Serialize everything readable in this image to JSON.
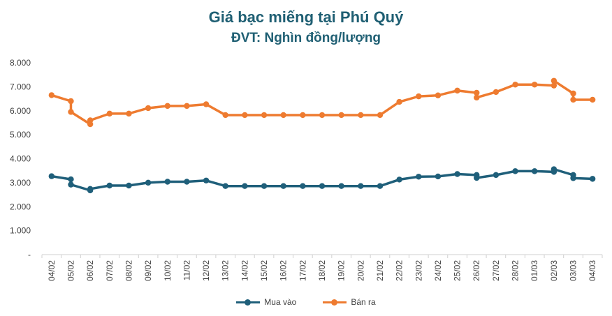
{
  "chart_data": {
    "type": "line",
    "title": "Giá bạc miếng tại Phú Quý",
    "subtitle": "ĐVT: Nghìn đồng/lượng",
    "xlabel": "",
    "ylabel": "",
    "ylim": [
      0,
      8000
    ],
    "y_ticks": [
      "-",
      "1.000",
      "2.000",
      "3.000",
      "4.000",
      "5.000",
      "6.000",
      "7.000",
      "8.000"
    ],
    "grid": false,
    "legend_position": "bottom",
    "categories": [
      "04/02",
      "05/02",
      "06/02",
      "07/02",
      "08/02",
      "09/02",
      "10/02",
      "11/02",
      "12/02",
      "13/02",
      "14/02",
      "15/02",
      "16/02",
      "17/02",
      "18/02",
      "19/02",
      "20/02",
      "21/02",
      "22/02",
      "23/02",
      "24/02",
      "25/02",
      "26/02",
      "27/02",
      "28/02",
      "01/03",
      "02/03",
      "03/03",
      "04/03"
    ],
    "series": [
      {
        "name": "Mua vào",
        "color": "#1f5f7a",
        "points": [
          {
            "x": "04/02",
            "y": 3270
          },
          {
            "x": "05/02",
            "y": 3140
          },
          {
            "x": "05/02",
            "y": 2920
          },
          {
            "x": "06/02",
            "y": 2680
          },
          {
            "x": "06/02",
            "y": 2740
          },
          {
            "x": "07/02",
            "y": 2880
          },
          {
            "x": "08/02",
            "y": 2880
          },
          {
            "x": "09/02",
            "y": 3000
          },
          {
            "x": "10/02",
            "y": 3040
          },
          {
            "x": "11/02",
            "y": 3040
          },
          {
            "x": "12/02",
            "y": 3090
          },
          {
            "x": "13/02",
            "y": 2860
          },
          {
            "x": "14/02",
            "y": 2860
          },
          {
            "x": "15/02",
            "y": 2860
          },
          {
            "x": "16/02",
            "y": 2860
          },
          {
            "x": "17/02",
            "y": 2860
          },
          {
            "x": "18/02",
            "y": 2860
          },
          {
            "x": "19/02",
            "y": 2860
          },
          {
            "x": "20/02",
            "y": 2860
          },
          {
            "x": "21/02",
            "y": 2860
          },
          {
            "x": "22/02",
            "y": 3130
          },
          {
            "x": "23/02",
            "y": 3250
          },
          {
            "x": "24/02",
            "y": 3260
          },
          {
            "x": "25/02",
            "y": 3360
          },
          {
            "x": "26/02",
            "y": 3320
          },
          {
            "x": "26/02",
            "y": 3200
          },
          {
            "x": "27/02",
            "y": 3320
          },
          {
            "x": "28/02",
            "y": 3480
          },
          {
            "x": "01/03",
            "y": 3480
          },
          {
            "x": "02/03",
            "y": 3450
          },
          {
            "x": "02/03",
            "y": 3560
          },
          {
            "x": "03/03",
            "y": 3320
          },
          {
            "x": "03/03",
            "y": 3190
          },
          {
            "x": "04/03",
            "y": 3160
          }
        ]
      },
      {
        "name": "Bán ra",
        "color": "#ee7b30",
        "points": [
          {
            "x": "04/02",
            "y": 6650
          },
          {
            "x": "05/02",
            "y": 6400
          },
          {
            "x": "05/02",
            "y": 5950
          },
          {
            "x": "06/02",
            "y": 5440
          },
          {
            "x": "06/02",
            "y": 5600
          },
          {
            "x": "07/02",
            "y": 5880
          },
          {
            "x": "08/02",
            "y": 5880
          },
          {
            "x": "09/02",
            "y": 6110
          },
          {
            "x": "10/02",
            "y": 6200
          },
          {
            "x": "11/02",
            "y": 6200
          },
          {
            "x": "12/02",
            "y": 6270
          },
          {
            "x": "13/02",
            "y": 5820
          },
          {
            "x": "14/02",
            "y": 5820
          },
          {
            "x": "15/02",
            "y": 5820
          },
          {
            "x": "16/02",
            "y": 5820
          },
          {
            "x": "17/02",
            "y": 5820
          },
          {
            "x": "18/02",
            "y": 5820
          },
          {
            "x": "19/02",
            "y": 5820
          },
          {
            "x": "20/02",
            "y": 5820
          },
          {
            "x": "21/02",
            "y": 5820
          },
          {
            "x": "22/02",
            "y": 6370
          },
          {
            "x": "23/02",
            "y": 6600
          },
          {
            "x": "24/02",
            "y": 6640
          },
          {
            "x": "25/02",
            "y": 6840
          },
          {
            "x": "26/02",
            "y": 6750
          },
          {
            "x": "26/02",
            "y": 6550
          },
          {
            "x": "27/02",
            "y": 6780
          },
          {
            "x": "28/02",
            "y": 7090
          },
          {
            "x": "01/03",
            "y": 7090
          },
          {
            "x": "02/03",
            "y": 7050
          },
          {
            "x": "02/03",
            "y": 7250
          },
          {
            "x": "03/03",
            "y": 6720
          },
          {
            "x": "03/03",
            "y": 6460
          },
          {
            "x": "04/03",
            "y": 6460
          }
        ]
      }
    ]
  }
}
